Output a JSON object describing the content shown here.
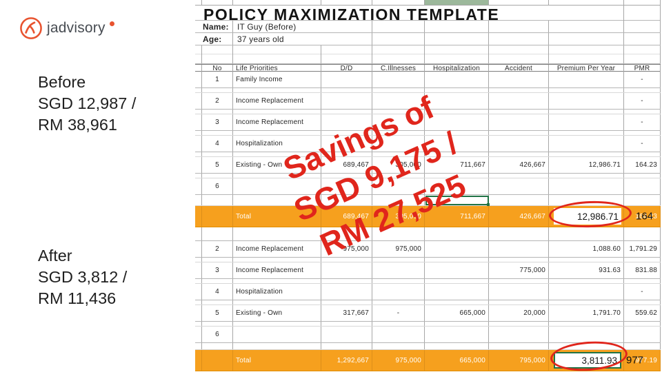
{
  "slide": {
    "brand": {
      "name": "jadvisory"
    },
    "before_label": {
      "title": "Before",
      "lines": [
        "SGD 12,987 /",
        "RM 38,961"
      ]
    },
    "after_label": {
      "title": "After",
      "lines": [
        "SGD 3,812 /",
        "RM 11,436"
      ]
    },
    "savings_note": {
      "lines": [
        "Savings of",
        "SGD 9,175 /",
        "RM 27,525"
      ]
    }
  },
  "spreadsheet": {
    "title": "POLICY MAXIMIZATION TEMPLATE",
    "name": {
      "label": "Name:",
      "value": "IT Guy (Before)"
    },
    "age": {
      "label": "Age:",
      "value": "37 years old"
    },
    "columns": [
      "No",
      "Life Priorities",
      "D/D",
      "C.Illnesses",
      "Hospitalization",
      "Accident",
      "Premium Per Year",
      "PMR"
    ],
    "before_table": {
      "rows": [
        [
          "1",
          "Family Income",
          "",
          "",
          "",
          "",
          "",
          "-"
        ],
        [
          "2",
          "Income Replacement",
          "",
          "",
          "",
          "",
          "",
          "-"
        ],
        [
          "3",
          "Income Replacement",
          "",
          "",
          "",
          "",
          "",
          "-"
        ],
        [
          "4",
          "Hospitalization",
          "",
          "",
          "",
          "",
          "",
          "-"
        ],
        [
          "5",
          "Existing - Own",
          "689,467",
          "305,000",
          "711,667",
          "426,667",
          "12,986.71",
          "164.23"
        ],
        [
          "6",
          "",
          "",
          "",
          "",
          "",
          "",
          ""
        ]
      ],
      "total": {
        "label": "Total",
        "values": [
          "689,467",
          "305,000",
          "711,667",
          "426,667",
          "12,986.71",
          "164.23"
        ],
        "premium_overlay": "12,986.71",
        "pmr_overlay": "164"
      }
    },
    "after_table": {
      "rows": [
        [
          "2",
          "Income Replacement",
          "975,000",
          "975,000",
          "",
          "",
          "1,088.60",
          "1,791.29"
        ],
        [
          "3",
          "Income Replacement",
          "",
          "",
          "",
          "775,000",
          "931.63",
          "831.88"
        ],
        [
          "4",
          "Hospitalization",
          "",
          "",
          "",
          "",
          "",
          "-"
        ],
        [
          "5",
          "Existing - Own",
          "317,667",
          "-",
          "665,000",
          "20,000",
          "1,791.70",
          "559.62"
        ],
        [
          "6",
          "",
          "",
          "",
          "",
          "",
          "",
          ""
        ]
      ],
      "total": {
        "label": "Total",
        "values": [
          "1,292,667",
          "975,000",
          "665,000",
          "795,000",
          "3,811.93",
          "977.19"
        ],
        "premium_overlay": "3,811.93",
        "pmr_overlay": "977"
      }
    }
  },
  "colors": {
    "total_row_orange": "#F6A01E",
    "annotation_red": "#E0261C",
    "brand_orange_red": "#E8532F",
    "selection_green": "#217346",
    "filled_cell_green": "#9CB89B"
  }
}
